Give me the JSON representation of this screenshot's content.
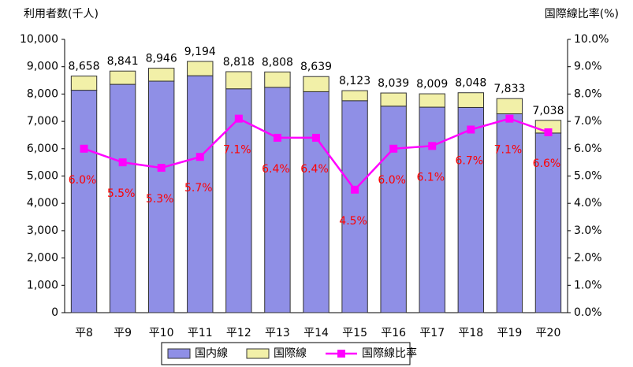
{
  "chart_data": {
    "type": "bar",
    "y_axis_title": "利用者数(千人)",
    "y2_axis_title": "国際線比率(%)",
    "categories": [
      "平8",
      "平9",
      "平10",
      "平11",
      "平12",
      "平13",
      "平14",
      "平15",
      "平16",
      "平17",
      "平18",
      "平19",
      "平20"
    ],
    "series": [
      {
        "name": "国内線",
        "color": "#8f8fe6",
        "values": [
          8139,
          8355,
          8472,
          8670,
          8192,
          8244,
          8086,
          7757,
          7557,
          7520,
          7509,
          7277,
          6573
        ]
      },
      {
        "name": "国際線",
        "color": "#f2f0a8",
        "values": [
          519,
          486,
          474,
          524,
          626,
          564,
          553,
          366,
          482,
          489,
          539,
          556,
          465
        ]
      },
      {
        "name": "国際線比率",
        "color": "#ff00ff",
        "axis": "y2",
        "values": [
          6.0,
          5.5,
          5.3,
          5.7,
          7.1,
          6.4,
          6.4,
          4.5,
          6.0,
          6.1,
          6.7,
          7.1,
          6.6
        ],
        "value_labels": [
          "6.0%",
          "5.5%",
          "5.3%",
          "5.7%",
          "7.1%",
          "6.4%",
          "6.4%",
          "4.5%",
          "6.0%",
          "6.1%",
          "6.7%",
          "7.1%",
          "6.6%"
        ]
      }
    ],
    "total_labels": [
      "8,658",
      "8,841",
      "8,946",
      "9,194",
      "8,818",
      "8,808",
      "8,639",
      "8,123",
      "8,039",
      "8,009",
      "8,048",
      "7,833",
      "7,038"
    ],
    "ylim": [
      0,
      10000
    ],
    "yticks": [
      0,
      {
        "value": 1000,
        "label": "1,000"
      },
      {
        "value": 2000,
        "label": "2,000"
      },
      {
        "value": 3000,
        "label": "3,000"
      },
      {
        "value": 4000,
        "label": "4,000"
      },
      {
        "value": 5000,
        "label": "5,000"
      },
      {
        "value": 6000,
        "label": "6,000"
      },
      {
        "value": 7000,
        "label": "7,000"
      },
      {
        "value": 8000,
        "label": "8,000"
      },
      {
        "value": 9000,
        "label": "9,000"
      },
      {
        "value": 10000,
        "label": "10,000"
      }
    ],
    "y2lim": [
      0,
      10
    ],
    "y2ticks": [
      {
        "value": 0,
        "label": "0.0%"
      },
      {
        "value": 1,
        "label": "1.0%"
      },
      {
        "value": 2,
        "label": "2.0%"
      },
      {
        "value": 3,
        "label": "3.0%"
      },
      {
        "value": 4,
        "label": "4.0%"
      },
      {
        "value": 5,
        "label": "5.0%"
      },
      {
        "value": 6,
        "label": "6.0%"
      },
      {
        "value": 7,
        "label": "7.0%"
      },
      {
        "value": 8,
        "label": "8.0%"
      },
      {
        "value": 9,
        "label": "9.0%"
      },
      {
        "value": 10,
        "label": "10.0%"
      }
    ],
    "legend": "bottom"
  }
}
